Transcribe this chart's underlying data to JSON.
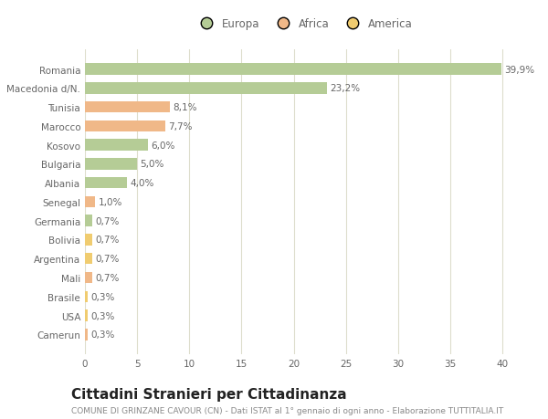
{
  "categories": [
    "Camerun",
    "USA",
    "Brasile",
    "Mali",
    "Argentina",
    "Bolivia",
    "Germania",
    "Senegal",
    "Albania",
    "Bulgaria",
    "Kosovo",
    "Marocco",
    "Tunisia",
    "Macedonia d/N.",
    "Romania"
  ],
  "values": [
    0.3,
    0.3,
    0.3,
    0.7,
    0.7,
    0.7,
    0.7,
    1.0,
    4.0,
    5.0,
    6.0,
    7.7,
    8.1,
    23.2,
    39.9
  ],
  "labels": [
    "0,3%",
    "0,3%",
    "0,3%",
    "0,7%",
    "0,7%",
    "0,7%",
    "0,7%",
    "1,0%",
    "4,0%",
    "5,0%",
    "6,0%",
    "7,7%",
    "8,1%",
    "23,2%",
    "39,9%"
  ],
  "continents": [
    "Africa",
    "America",
    "America",
    "Africa",
    "America",
    "America",
    "Europa",
    "Africa",
    "Europa",
    "Europa",
    "Europa",
    "Africa",
    "Africa",
    "Europa",
    "Europa"
  ],
  "colors": {
    "Europa": "#b5cc96",
    "Africa": "#f0b888",
    "America": "#f0cc70"
  },
  "title": "Cittadini Stranieri per Cittadinanza",
  "subtitle": "COMUNE DI GRINZANE CAVOUR (CN) - Dati ISTAT al 1° gennaio di ogni anno - Elaborazione TUTTITALIA.IT",
  "xlim": [
    0,
    42
  ],
  "xticks": [
    0,
    5,
    10,
    15,
    20,
    25,
    30,
    35,
    40
  ],
  "background_color": "#ffffff",
  "grid_color": "#ddddcc",
  "bar_height": 0.6,
  "label_fontsize": 7.5,
  "tick_fontsize": 7.5,
  "title_fontsize": 11,
  "subtitle_fontsize": 6.5,
  "legend_fontsize": 8.5
}
